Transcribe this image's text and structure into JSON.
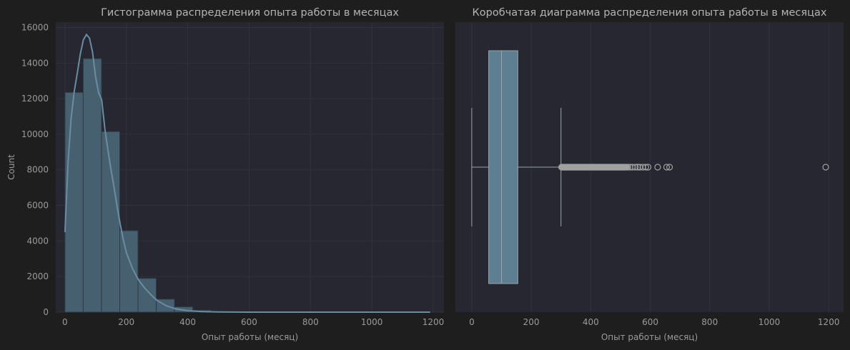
{
  "colors": {
    "figure_bg": "#1e1e1e",
    "axes_bg": "#262730",
    "grid": "#31323c",
    "bar_fill": "#46606f",
    "bar_edge": "#2c3a44",
    "kde_line": "#6a8ca3",
    "box_fill": "#5e7e92",
    "box_line": "#9aa3aa",
    "flier": "#a0a0a0",
    "text": "#b4b4b4"
  },
  "chart_data": [
    {
      "type": "histogram",
      "title": "Гистограмма распределения опыта работы в месяцах",
      "xlabel": "Опыт работы (месяц)",
      "ylabel": "Count",
      "xlim": [
        -30,
        1235
      ],
      "ylim": [
        0,
        16300
      ],
      "xticks": [
        0,
        200,
        400,
        600,
        800,
        1000,
        1200
      ],
      "yticks": [
        0,
        2000,
        4000,
        6000,
        8000,
        10000,
        12000,
        14000,
        16000
      ],
      "grid": true,
      "bin_edges": [
        0,
        59.5,
        119,
        178.5,
        238,
        297.5,
        357,
        416.5,
        476,
        535.5,
        595,
        654.5,
        714,
        773.5,
        833,
        892.5,
        952,
        1011.5,
        1071,
        1130.5,
        1190
      ],
      "counts": [
        12350,
        14250,
        10150,
        4580,
        1900,
        730,
        300,
        110,
        40,
        12,
        6,
        4,
        2,
        0,
        0,
        0,
        0,
        0,
        0,
        1
      ],
      "kde": {
        "x": [
          0,
          10,
          20,
          30,
          40,
          50,
          60,
          70,
          80,
          90,
          100,
          110,
          115,
          120,
          125,
          130,
          140,
          150,
          160,
          170,
          180,
          190,
          200,
          220,
          240,
          260,
          280,
          300,
          330,
          360,
          400,
          450,
          500,
          550,
          600,
          700,
          800,
          1000,
          1190
        ],
        "y": [
          4500,
          8400,
          10900,
          12400,
          13400,
          14500,
          15300,
          15600,
          15400,
          14600,
          13200,
          12300,
          12150,
          11900,
          11100,
          10300,
          9100,
          8000,
          7000,
          5950,
          4950,
          4100,
          3350,
          2450,
          1800,
          1350,
          980,
          660,
          360,
          190,
          80,
          30,
          12,
          5,
          2,
          0,
          0,
          0,
          0
        ]
      }
    },
    {
      "type": "boxplot",
      "title": "Коробчатая диаграмма распределения опыта работы в месяцах",
      "xlabel": "Опыт работы (месяц)",
      "xlim": [
        -55,
        1250
      ],
      "xticks": [
        0,
        200,
        400,
        600,
        800,
        1000,
        1200
      ],
      "grid": true,
      "box": {
        "whisker_low": 0,
        "q1": 57,
        "median": 100,
        "q3": 155,
        "whisker_high": 300
      },
      "outliers_dense_range": [
        302,
        520
      ],
      "outliers": [
        525,
        532,
        540,
        550,
        558,
        565,
        575,
        585,
        593,
        625,
        655,
        665,
        1190
      ]
    }
  ]
}
